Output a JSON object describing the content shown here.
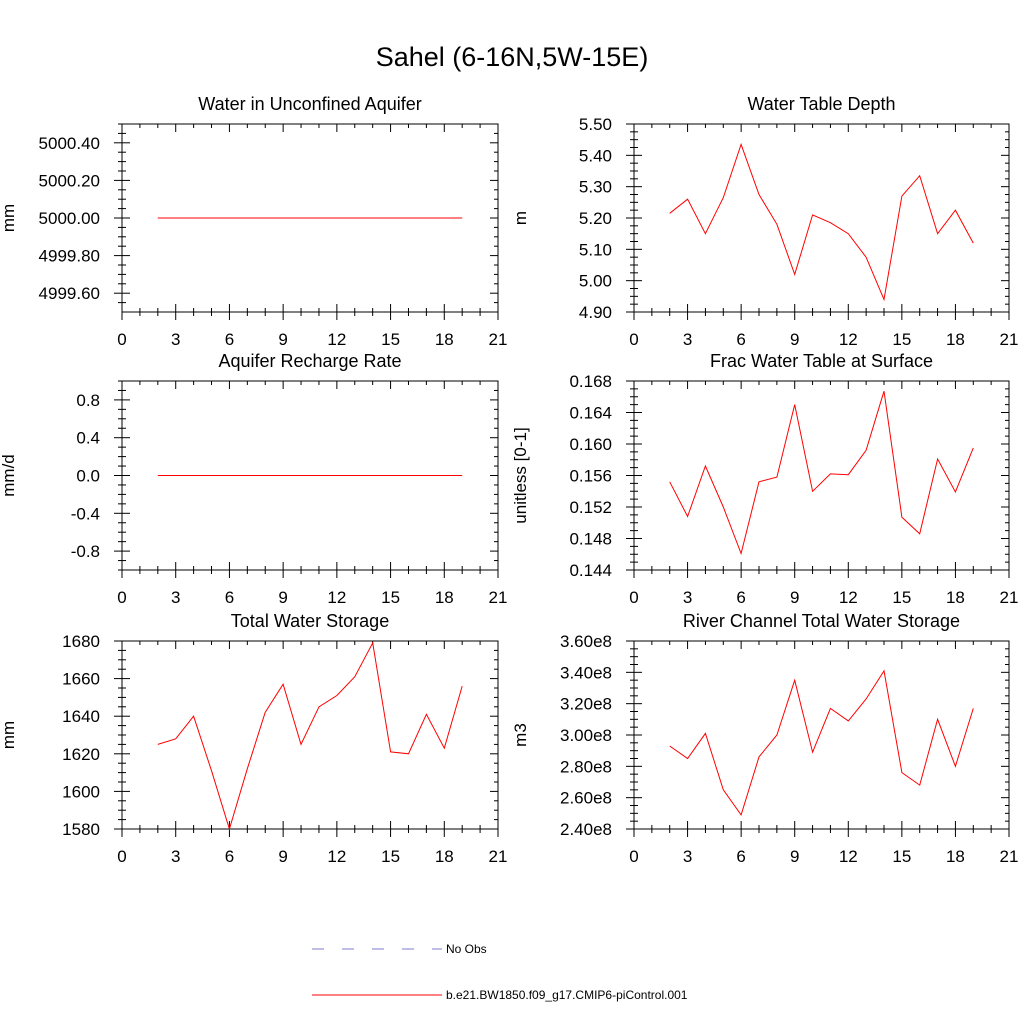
{
  "figure": {
    "title": "Sahel (6-16N,5W-15E)"
  },
  "legend": {
    "entries": [
      {
        "label": "No Obs",
        "color": "#7b7bd0",
        "style": "dashed"
      },
      {
        "label": "b.e21.BW1850.f09_g17.CMIP6-piControl.001",
        "color": "#ff0000",
        "style": "solid"
      }
    ]
  },
  "chart_data": [
    {
      "type": "line",
      "title": "Water in Unconfined Aquifer",
      "ylabel": "mm",
      "xlim": [
        0,
        21
      ],
      "ylim": [
        4999.5,
        5000.5
      ],
      "xticks": [
        0,
        3,
        6,
        9,
        12,
        15,
        18,
        21
      ],
      "yticks": [
        4999.6,
        4999.8,
        5000.0,
        5000.2,
        5000.4
      ],
      "ytick_labels": [
        "4999.60",
        "4999.80",
        "5000.00",
        "5000.20",
        "5000.40"
      ],
      "series": [
        {
          "color": "#ff0000",
          "x": [
            2,
            3,
            4,
            5,
            6,
            7,
            8,
            9,
            10,
            11,
            12,
            13,
            14,
            15,
            16,
            17,
            18,
            19
          ],
          "y": [
            5000.0,
            5000.0,
            5000.0,
            5000.0,
            5000.0,
            5000.0,
            5000.0,
            5000.0,
            5000.0,
            5000.0,
            5000.0,
            5000.0,
            5000.0,
            5000.0,
            5000.0,
            5000.0,
            5000.0,
            5000.0
          ]
        }
      ]
    },
    {
      "type": "line",
      "title": "Water Table Depth",
      "ylabel": "m",
      "xlim": [
        0,
        21
      ],
      "ylim": [
        4.9,
        5.5
      ],
      "xticks": [
        0,
        3,
        6,
        9,
        12,
        15,
        18,
        21
      ],
      "yticks": [
        4.9,
        5.0,
        5.1,
        5.2,
        5.3,
        5.4,
        5.5
      ],
      "ytick_labels": [
        "4.90",
        "5.00",
        "5.10",
        "5.20",
        "5.30",
        "5.40",
        "5.50"
      ],
      "series": [
        {
          "color": "#ff0000",
          "x": [
            2,
            3,
            4,
            5,
            6,
            7,
            8,
            9,
            10,
            11,
            12,
            13,
            14,
            15,
            16,
            17,
            18,
            19
          ],
          "y": [
            5.215,
            5.26,
            5.15,
            5.265,
            5.435,
            5.275,
            5.18,
            5.02,
            5.21,
            5.185,
            5.15,
            5.075,
            4.94,
            5.27,
            5.335,
            5.15,
            5.225,
            5.12
          ]
        }
      ]
    },
    {
      "type": "line",
      "title": "Aquifer Recharge Rate",
      "ylabel": "mm/d",
      "xlim": [
        0,
        21
      ],
      "ylim": [
        -1.0,
        1.0
      ],
      "xticks": [
        0,
        3,
        6,
        9,
        12,
        15,
        18,
        21
      ],
      "yticks": [
        -0.8,
        -0.4,
        0.0,
        0.4,
        0.8
      ],
      "ytick_labels": [
        "-0.8",
        "-0.4",
        "0.0",
        "0.4",
        "0.8"
      ],
      "series": [
        {
          "color": "#ff0000",
          "x": [
            2,
            3,
            4,
            5,
            6,
            7,
            8,
            9,
            10,
            11,
            12,
            13,
            14,
            15,
            16,
            17,
            18,
            19
          ],
          "y": [
            0,
            0,
            0,
            0,
            0,
            0,
            0,
            0,
            0,
            0,
            0,
            0,
            0,
            0,
            0,
            0,
            0,
            0
          ]
        }
      ]
    },
    {
      "type": "line",
      "title": "Frac Water Table at Surface",
      "ylabel": "unitless [0-1]",
      "xlim": [
        0,
        21
      ],
      "ylim": [
        0.144,
        0.168
      ],
      "xticks": [
        0,
        3,
        6,
        9,
        12,
        15,
        18,
        21
      ],
      "yticks": [
        0.144,
        0.148,
        0.152,
        0.156,
        0.16,
        0.164,
        0.168
      ],
      "ytick_labels": [
        "0.144",
        "0.148",
        "0.152",
        "0.156",
        "0.160",
        "0.164",
        "0.168"
      ],
      "series": [
        {
          "color": "#ff0000",
          "x": [
            2,
            3,
            4,
            5,
            6,
            7,
            8,
            9,
            10,
            11,
            12,
            13,
            14,
            15,
            16,
            17,
            18,
            19
          ],
          "y": [
            0.1552,
            0.1508,
            0.1572,
            0.152,
            0.1461,
            0.1552,
            0.1558,
            0.165,
            0.154,
            0.1562,
            0.1561,
            0.1592,
            0.1667,
            0.1507,
            0.1486,
            0.1581,
            0.1539,
            0.1595
          ]
        }
      ]
    },
    {
      "type": "line",
      "title": "Total Water Storage",
      "ylabel": "mm",
      "xlim": [
        0,
        21
      ],
      "ylim": [
        1580,
        1680
      ],
      "xticks": [
        0,
        3,
        6,
        9,
        12,
        15,
        18,
        21
      ],
      "yticks": [
        1580,
        1600,
        1620,
        1640,
        1660,
        1680
      ],
      "ytick_labels": [
        "1580",
        "1600",
        "1620",
        "1640",
        "1660",
        "1680"
      ],
      "series": [
        {
          "color": "#ff0000",
          "x": [
            2,
            3,
            4,
            5,
            6,
            7,
            8,
            9,
            10,
            11,
            12,
            13,
            14,
            15,
            16,
            17,
            18,
            19
          ],
          "y": [
            1625,
            1628,
            1640,
            1611,
            1580,
            1612,
            1642,
            1657,
            1625,
            1645,
            1651,
            1661,
            1679,
            1621,
            1620,
            1641,
            1623,
            1656
          ]
        }
      ]
    },
    {
      "type": "line",
      "title": "River Channel Total Water Storage",
      "ylabel": "m3",
      "xlim": [
        0,
        21
      ],
      "ylim": [
        240000000.0,
        360000000.0
      ],
      "xticks": [
        0,
        3,
        6,
        9,
        12,
        15,
        18,
        21
      ],
      "yticks": [
        240000000.0,
        260000000.0,
        280000000.0,
        300000000.0,
        320000000.0,
        340000000.0,
        360000000.0
      ],
      "ytick_labels": [
        "2.40e8",
        "2.60e8",
        "2.80e8",
        "3.00e8",
        "3.20e8",
        "3.40e8",
        "3.60e8"
      ],
      "series": [
        {
          "color": "#ff0000",
          "x": [
            2,
            3,
            4,
            5,
            6,
            7,
            8,
            9,
            10,
            11,
            12,
            13,
            14,
            15,
            16,
            17,
            18,
            19
          ],
          "y": [
            293000000.0,
            285000000.0,
            301000000.0,
            265000000.0,
            249000000.0,
            286000000.0,
            300000000.0,
            335000000.0,
            289000000.0,
            317000000.0,
            309000000.0,
            323000000.0,
            341000000.0,
            276000000.0,
            268000000.0,
            310000000.0,
            280000000.0,
            317000000.0
          ]
        }
      ]
    }
  ]
}
